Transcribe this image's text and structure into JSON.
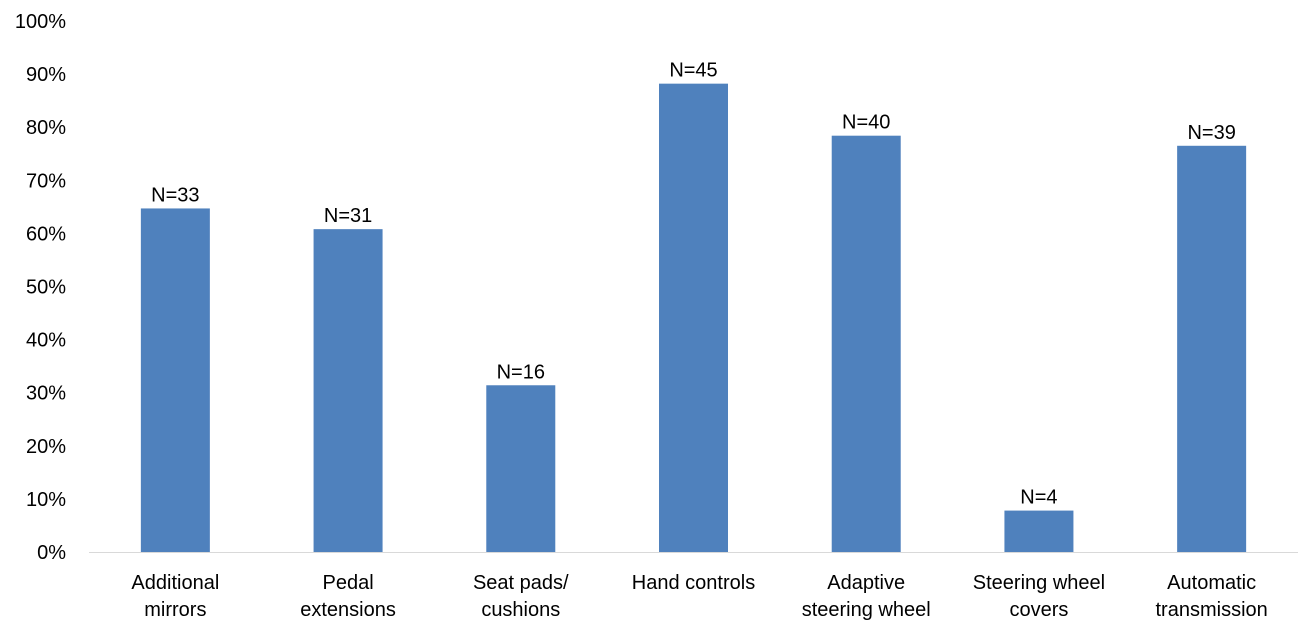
{
  "chart_data": {
    "type": "bar",
    "categories": [
      [
        "Additional",
        "mirrors"
      ],
      [
        "Pedal",
        "extensions"
      ],
      [
        "Seat pads/",
        "cushions"
      ],
      [
        "Hand controls"
      ],
      [
        "Adaptive",
        "steering wheel"
      ],
      [
        "Steering wheel",
        "covers"
      ],
      [
        "Automatic",
        "transmission"
      ]
    ],
    "series": [
      {
        "values": [
          64.7,
          60.8,
          31.4,
          88.2,
          78.4,
          7.8,
          76.5
        ],
        "data_labels": [
          "N=33",
          "N=31",
          "N=16",
          "N=45",
          "N=40",
          "N=4",
          "N=39"
        ],
        "color": "#4f81bd"
      }
    ],
    "yticks": [
      "0%",
      "10%",
      "20%",
      "30%",
      "40%",
      "50%",
      "60%",
      "70%",
      "80%",
      "90%",
      "100%"
    ],
    "ylim": [
      0,
      100
    ],
    "grid": false,
    "legend": "none",
    "title": "",
    "xlabel": "",
    "ylabel": "",
    "axis_color": "#d9d9d9"
  }
}
